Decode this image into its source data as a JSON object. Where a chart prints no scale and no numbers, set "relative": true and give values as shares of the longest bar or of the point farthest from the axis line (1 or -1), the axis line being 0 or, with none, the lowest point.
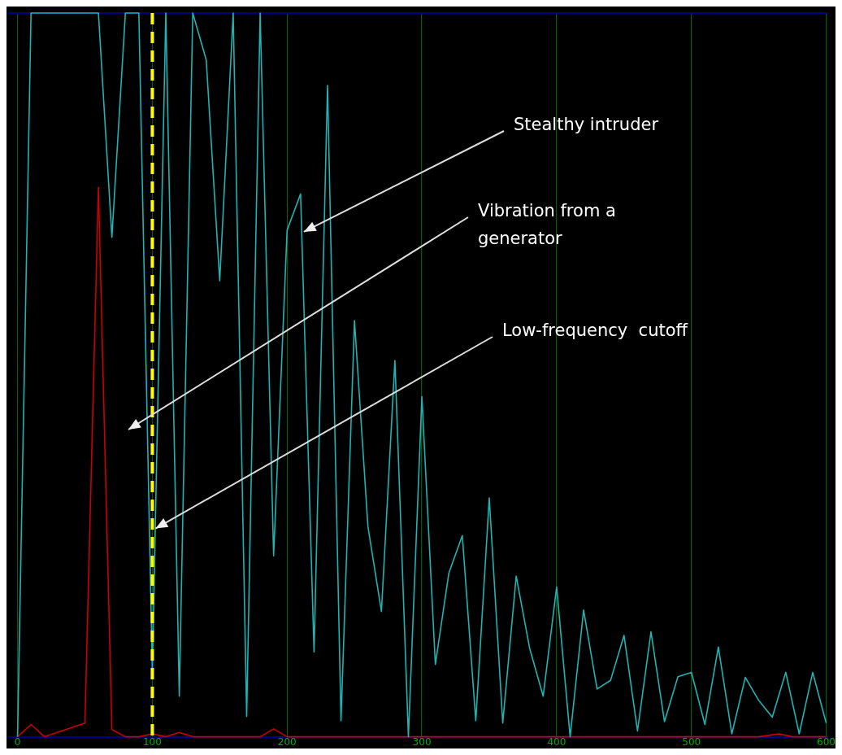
{
  "chart_data": {
    "type": "line",
    "relative": true,
    "xlim": [
      -7,
      601
    ],
    "xticks": [
      0,
      100,
      200,
      300,
      400,
      500,
      600
    ],
    "grid": "x",
    "legend": false,
    "marker": "none",
    "line_style": "solid",
    "series": [
      {
        "color": "#1fb3b3",
        "x": [
          0,
          10,
          20,
          30,
          40,
          50,
          60,
          70,
          80,
          90,
          100,
          110,
          120,
          130,
          140,
          150,
          160,
          170,
          180,
          190,
          200,
          210,
          220,
          230,
          240,
          250,
          260,
          270,
          280,
          290,
          300,
          310,
          320,
          330,
          340,
          350,
          360,
          370,
          380,
          390,
          400,
          410,
          420,
          430,
          440,
          450,
          460,
          470,
          480,
          490,
          500,
          510,
          520,
          530,
          540,
          550,
          560,
          570,
          580,
          590,
          600
        ],
        "values": [
          0,
          1,
          1,
          1,
          1,
          1,
          1,
          0.69,
          1,
          1,
          0.09,
          1,
          0.056,
          1,
          0.935,
          0.63,
          1,
          0.028,
          1,
          0.25,
          0.7,
          0.75,
          0.117,
          0.9,
          0.022,
          0.575,
          0.29,
          0.173,
          0.52,
          0,
          0.47,
          0.1,
          0.226,
          0.278,
          0.022,
          0.33,
          0.019,
          0.222,
          0.122,
          0.056,
          0.207,
          0,
          0.175,
          0.066,
          0.078,
          0.14,
          0.008,
          0.145,
          0.021,
          0.083,
          0.089,
          0.017,
          0.124,
          0.004,
          0.082,
          0.05,
          0.027,
          0.089,
          0.004,
          0.089,
          0.019
        ]
      },
      {
        "color": "#cc0000",
        "x": [
          0,
          10,
          20,
          50,
          60,
          70,
          80,
          90,
          100,
          110,
          120,
          130,
          180,
          190,
          200,
          300,
          400,
          550,
          565,
          575,
          600
        ],
        "values": [
          0,
          0.017,
          0,
          0.019,
          0.759,
          0.01,
          0,
          0,
          0.004,
          0,
          0.006,
          0,
          0,
          0.011,
          0,
          0,
          0,
          0,
          0.004,
          0,
          0
        ]
      }
    ],
    "ref_lines": [
      {
        "axis": "x",
        "value": 100,
        "color": "#ffff00",
        "line_style": "dashed"
      }
    ],
    "annotations": [
      {
        "text": "Stealthy intruder",
        "x": 210,
        "y": 0.7
      },
      "Vibration from a generator",
      {
        "text": "Low-frequency  cutoff",
        "x": 100,
        "y": 0.29
      }
    ]
  }
}
